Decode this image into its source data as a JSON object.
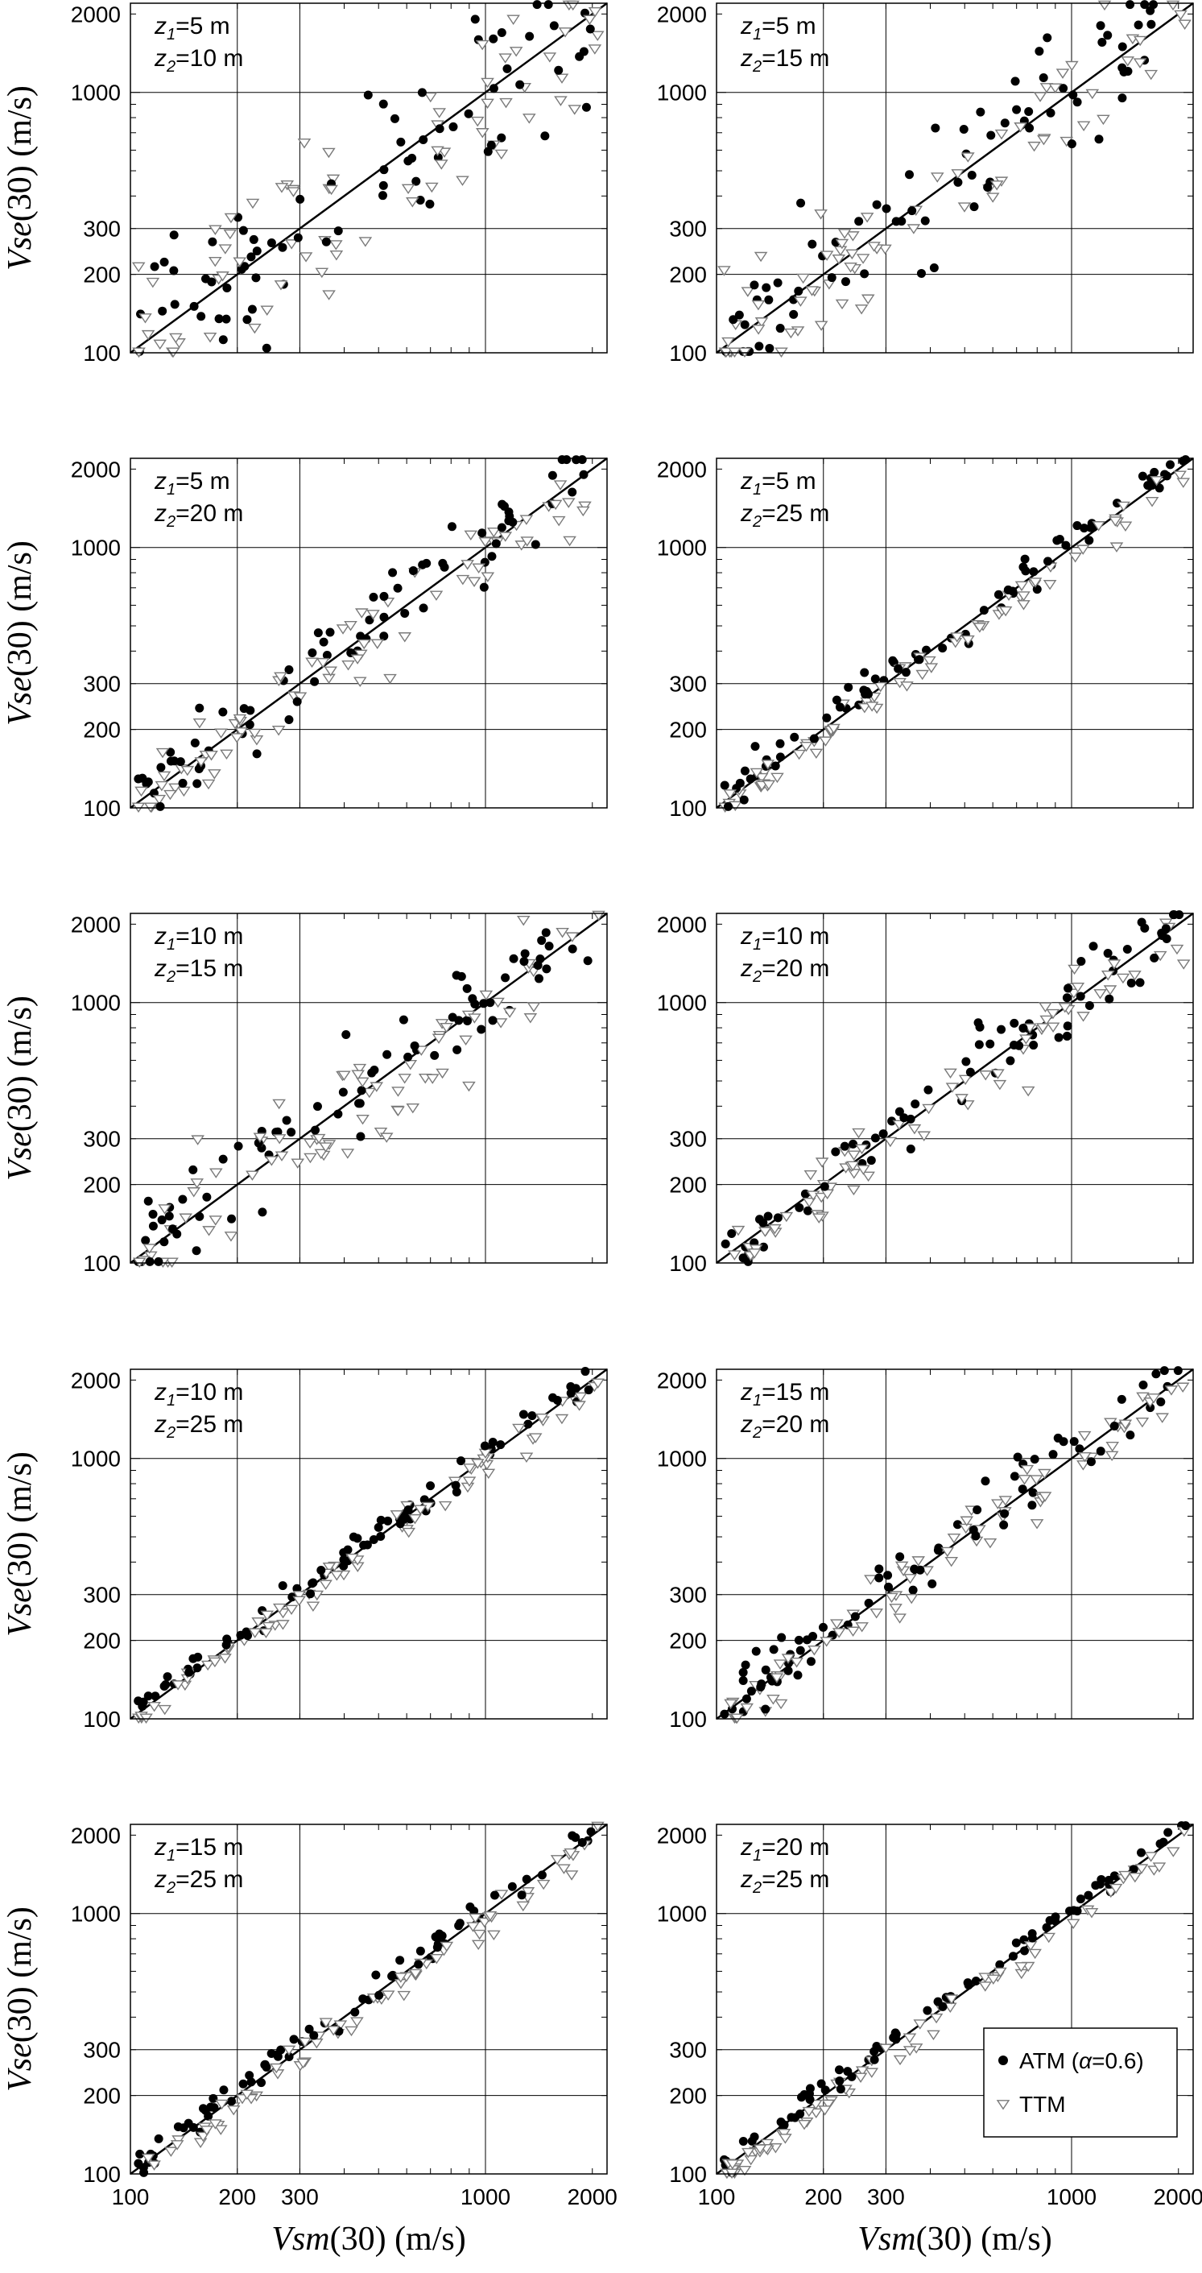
{
  "figure": {
    "ylabel": {
      "italic": "Vse",
      "rest": "(30) (m/s)"
    },
    "xlabel": {
      "italic": "Vsm",
      "rest": "(30) (m/s)"
    },
    "legend": [
      {
        "symbol": "filled-circle",
        "label_pre": "ATM (",
        "label_greek": "α",
        "label_post": "=0.6)"
      },
      {
        "symbol": "open-triangle-down",
        "label": "TTM"
      }
    ],
    "colors": {
      "atm": "#000000",
      "ttm": "#7a7a7a",
      "grid": "#000000"
    }
  },
  "chart_data": [
    {
      "type": "scatter",
      "panel": "z1=5 m, z2=10 m",
      "z1": "5 m",
      "z2": "10 m",
      "scale": "log",
      "xlim": [
        100,
        2200
      ],
      "ylim": [
        100,
        2200
      ],
      "xticks": [
        100,
        200,
        300,
        1000,
        2000
      ],
      "yticks": [
        100,
        200,
        300,
        1000,
        2000
      ],
      "ref_line": "1:1",
      "spread": 0.16,
      "series": [
        {
          "name": "ATM",
          "marker": "filled-circle"
        },
        {
          "name": "TTM",
          "marker": "open-triangle-down"
        }
      ]
    },
    {
      "type": "scatter",
      "panel": "z1=5 m, z2=15 m",
      "z1": "5 m",
      "z2": "15 m",
      "scale": "log",
      "xlim": [
        100,
        2200
      ],
      "ylim": [
        100,
        2200
      ],
      "xticks": [
        100,
        200,
        300,
        1000,
        2000
      ],
      "yticks": [
        100,
        200,
        300,
        1000,
        2000
      ],
      "ref_line": "1:1",
      "spread": 0.12,
      "series": [
        {
          "name": "ATM",
          "marker": "filled-circle"
        },
        {
          "name": "TTM",
          "marker": "open-triangle-down"
        }
      ]
    },
    {
      "type": "scatter",
      "panel": "z1=5 m, z2=20 m",
      "z1": "5 m",
      "z2": "20 m",
      "scale": "log",
      "xlim": [
        100,
        2200
      ],
      "ylim": [
        100,
        2200
      ],
      "xticks": [
        100,
        200,
        300,
        1000,
        2000
      ],
      "yticks": [
        100,
        200,
        300,
        1000,
        2000
      ],
      "ref_line": "1:1",
      "spread": 0.07,
      "series": [
        {
          "name": "ATM",
          "marker": "filled-circle"
        },
        {
          "name": "TTM",
          "marker": "open-triangle-down"
        }
      ]
    },
    {
      "type": "scatter",
      "panel": "z1=5 m, z2=25 m",
      "z1": "5 m",
      "z2": "25 m",
      "scale": "log",
      "xlim": [
        100,
        2200
      ],
      "ylim": [
        100,
        2200
      ],
      "xticks": [
        100,
        200,
        300,
        1000,
        2000
      ],
      "yticks": [
        100,
        200,
        300,
        1000,
        2000
      ],
      "ref_line": "1:1",
      "spread": 0.035,
      "series": [
        {
          "name": "ATM",
          "marker": "filled-circle"
        },
        {
          "name": "TTM",
          "marker": "open-triangle-down"
        }
      ]
    },
    {
      "type": "scatter",
      "panel": "z1=10 m, z2=15 m",
      "z1": "10 m",
      "z2": "15 m",
      "scale": "log",
      "xlim": [
        100,
        2200
      ],
      "ylim": [
        100,
        2200
      ],
      "xticks": [
        100,
        200,
        300,
        1000,
        2000
      ],
      "yticks": [
        100,
        200,
        300,
        1000,
        2000
      ],
      "ref_line": "1:1",
      "spread": 0.1,
      "series": [
        {
          "name": "ATM",
          "marker": "filled-circle"
        },
        {
          "name": "TTM",
          "marker": "open-triangle-down"
        }
      ]
    },
    {
      "type": "scatter",
      "panel": "z1=10 m, z2=20 m",
      "z1": "10 m",
      "z2": "20 m",
      "scale": "log",
      "xlim": [
        100,
        2200
      ],
      "ylim": [
        100,
        2200
      ],
      "xticks": [
        100,
        200,
        300,
        1000,
        2000
      ],
      "yticks": [
        100,
        200,
        300,
        1000,
        2000
      ],
      "ref_line": "1:1",
      "spread": 0.065,
      "series": [
        {
          "name": "ATM",
          "marker": "filled-circle"
        },
        {
          "name": "TTM",
          "marker": "open-triangle-down"
        }
      ]
    },
    {
      "type": "scatter",
      "panel": "z1=10 m, z2=25 m",
      "z1": "10 m",
      "z2": "25 m",
      "scale": "log",
      "xlim": [
        100,
        2200
      ],
      "ylim": [
        100,
        2200
      ],
      "xticks": [
        100,
        200,
        300,
        1000,
        2000
      ],
      "yticks": [
        100,
        200,
        300,
        1000,
        2000
      ],
      "ref_line": "1:1",
      "spread": 0.03,
      "series": [
        {
          "name": "ATM",
          "marker": "filled-circle"
        },
        {
          "name": "TTM",
          "marker": "open-triangle-down"
        }
      ]
    },
    {
      "type": "scatter",
      "panel": "z1=15 m, z2=20 m",
      "z1": "15 m",
      "z2": "20 m",
      "scale": "log",
      "xlim": [
        100,
        2200
      ],
      "ylim": [
        100,
        2200
      ],
      "xticks": [
        100,
        200,
        300,
        1000,
        2000
      ],
      "yticks": [
        100,
        200,
        300,
        1000,
        2000
      ],
      "ref_line": "1:1",
      "spread": 0.06,
      "series": [
        {
          "name": "ATM",
          "marker": "filled-circle"
        },
        {
          "name": "TTM",
          "marker": "open-triangle-down"
        }
      ]
    },
    {
      "type": "scatter",
      "panel": "z1=15 m, z2=25 m",
      "z1": "15 m",
      "z2": "25 m",
      "scale": "log",
      "xlim": [
        100,
        2200
      ],
      "ylim": [
        100,
        2200
      ],
      "xticks": [
        100,
        200,
        300,
        1000,
        2000
      ],
      "yticks": [
        100,
        200,
        300,
        1000,
        2000
      ],
      "ref_line": "1:1",
      "spread": 0.028,
      "series": [
        {
          "name": "ATM",
          "marker": "filled-circle"
        },
        {
          "name": "TTM",
          "marker": "open-triangle-down"
        }
      ]
    },
    {
      "type": "scatter",
      "panel": "z1=20 m, z2=25 m",
      "z1": "20 m",
      "z2": "25 m",
      "scale": "log",
      "xlim": [
        100,
        2200
      ],
      "ylim": [
        100,
        2200
      ],
      "xticks": [
        100,
        200,
        300,
        1000,
        2000
      ],
      "yticks": [
        100,
        200,
        300,
        1000,
        2000
      ],
      "ref_line": "1:1",
      "spread": 0.022,
      "series": [
        {
          "name": "ATM",
          "marker": "filled-circle"
        },
        {
          "name": "TTM",
          "marker": "open-triangle-down"
        }
      ]
    }
  ]
}
